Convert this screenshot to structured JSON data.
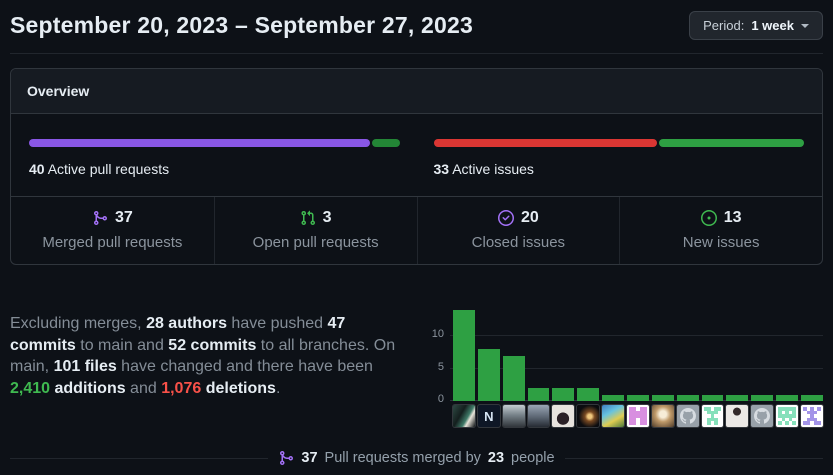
{
  "header": {
    "title": "September 20, 2023 – September 27, 2023",
    "period_label": "Period:",
    "period_value": "1 week"
  },
  "overview": {
    "title": "Overview",
    "pull_requests": {
      "count": "40",
      "label": "Active pull requests",
      "segments": [
        {
          "name": "merged",
          "color": "#8957e5",
          "pct": 92.5
        },
        {
          "name": "open",
          "color": "#238636",
          "pct": 7.5
        }
      ]
    },
    "issues": {
      "count": "33",
      "label": "Active issues",
      "segments": [
        {
          "name": "closed",
          "color": "#da3633",
          "pct": 60.6
        },
        {
          "name": "new",
          "color": "#2ea043",
          "pct": 39.4
        }
      ]
    },
    "stats": [
      {
        "icon": "git-merge-icon",
        "color": "#a371f7",
        "value": "37",
        "label": "Merged pull requests"
      },
      {
        "icon": "git-pull-request-icon",
        "color": "#3fb950",
        "value": "3",
        "label": "Open pull requests"
      },
      {
        "icon": "issue-closed-icon",
        "color": "#a371f7",
        "value": "20",
        "label": "Closed issues"
      },
      {
        "icon": "issue-opened-icon",
        "color": "#3fb950",
        "value": "13",
        "label": "New issues"
      }
    ]
  },
  "summary": {
    "segments": [
      {
        "t": "Excluding merges, ",
        "s": "n"
      },
      {
        "t": "28 authors",
        "s": "b"
      },
      {
        "t": " have pushed ",
        "s": "n"
      },
      {
        "t": "47 commits",
        "s": "b"
      },
      {
        "t": " to main and ",
        "s": "n"
      },
      {
        "t": "52 commits",
        "s": "b"
      },
      {
        "t": " to all branches. On main, ",
        "s": "n"
      },
      {
        "t": "101 files",
        "s": "b"
      },
      {
        "t": " have changed and there have been ",
        "s": "n"
      },
      {
        "t": "2,410",
        "s": "add"
      },
      {
        "t": " ",
        "s": "n"
      },
      {
        "t": "additions",
        "s": "b"
      },
      {
        "t": " and ",
        "s": "n"
      },
      {
        "t": "1,076",
        "s": "del"
      },
      {
        "t": " ",
        "s": "n"
      },
      {
        "t": "deletions",
        "s": "b"
      },
      {
        "t": ".",
        "s": "n"
      }
    ]
  },
  "chart_data": {
    "type": "bar",
    "title": "",
    "categories": [
      "photo-person-teal",
      "logo-letter-N",
      "photo-grayscale-person",
      "photo-hooded-person",
      "photo-woman-dark-hair",
      "photo-dark-night-light",
      "photo-colorful-hat",
      "identicon-pink",
      "photo-golden-glow",
      "default-octocat",
      "identicon-mint",
      "photo-woman-white-top",
      "default-octocat",
      "identicon-mint-2",
      "identicon-purple"
    ],
    "values": [
      14,
      8,
      7,
      2,
      2,
      2,
      1,
      1,
      1,
      1,
      1,
      1,
      1,
      1,
      1
    ],
    "yticks": [
      0,
      5,
      10
    ],
    "ylim": [
      0,
      15
    ],
    "bar_color": "#2ea043",
    "xlabel": "",
    "ylabel": "",
    "legend": "none",
    "grid": "horizontal"
  },
  "avatars": [
    {
      "kind": "photo",
      "bg": "linear-gradient(120deg,#2e4a44 0%,#141f1e 38%,#3f7a68 62%,#e8e4da 72%,#0d1214 100%)"
    },
    {
      "kind": "letter",
      "bg": "#0e1726",
      "char": "N",
      "fg": "#d5e4f2"
    },
    {
      "kind": "photo",
      "bg": "linear-gradient(180deg,#c3ccd1 0%,#78838a 45%,#30353a 100%)"
    },
    {
      "kind": "photo",
      "bg": "linear-gradient(180deg,#9aa6b5 0%,#5c6673 55%,#262b33 100%)"
    },
    {
      "kind": "photo",
      "bg": "radial-gradient(circle at 50% 62%,#2a2026 0 34%,#e7e3de 36%)"
    },
    {
      "kind": "photo",
      "bg": "radial-gradient(circle at 58% 52%,#f0c77d 0 12%,#7a4a22 28%,#0b0c10 65%)"
    },
    {
      "kind": "photo",
      "bg": "linear-gradient(150deg,#3f7ec2 0%,#67c3e0 35%,#dfcc52 65%,#4c7a3d 100%)"
    },
    {
      "kind": "identicon",
      "color": "#d88fe0",
      "pattern": [
        "11011",
        "11111",
        "11111",
        "11011",
        "11011"
      ]
    },
    {
      "kind": "photo",
      "bg": "radial-gradient(circle at 50% 42%,#f7edd8 0 20%,#bf9a6a 45%,#503d2a 100%)"
    },
    {
      "kind": "octocat",
      "bg": "#98a1a9",
      "fg": "#d7dce1"
    },
    {
      "kind": "identicon",
      "color": "#86e0bb",
      "pattern": [
        "11011",
        "01110",
        "00100",
        "01110",
        "01010"
      ]
    },
    {
      "kind": "photo",
      "bg": "radial-gradient(circle at 50% 30%,#33292a 0 20%,#ece9e6 22%)"
    },
    {
      "kind": "octocat",
      "bg": "#98a1a9",
      "fg": "#d7dce1"
    },
    {
      "kind": "identicon",
      "color": "#86e0bb",
      "pattern": [
        "11111",
        "10101",
        "11111",
        "01010",
        "10101"
      ]
    },
    {
      "kind": "identicon",
      "color": "#a394e8",
      "pattern": [
        "10101",
        "01110",
        "00100",
        "01110",
        "11011"
      ]
    }
  ],
  "footer": {
    "merged_count": "37",
    "text_mid": " Pull requests merged by ",
    "people_count": "23",
    "text_end": " people"
  }
}
